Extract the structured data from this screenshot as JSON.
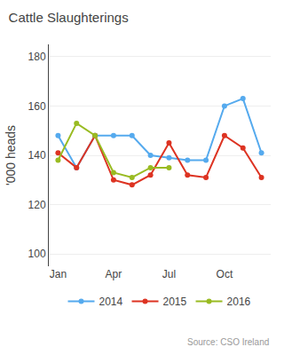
{
  "chart_data": {
    "type": "line",
    "title": "Cattle Slaughterings",
    "ylabel": "'000 heads",
    "annotations": [
      "Source: CSO Ireland"
    ],
    "categories": [
      "Jan",
      null,
      null,
      "Apr",
      null,
      null,
      "Jul",
      null,
      null,
      "Oct",
      null,
      null
    ],
    "series": [
      {
        "name": "2014",
        "color": "#55aaee",
        "values": [
          148,
          135,
          148,
          148,
          148,
          140,
          139,
          138,
          138,
          160,
          163,
          141
        ]
      },
      {
        "name": "2015",
        "color": "#dd3322",
        "values": [
          141,
          135,
          148,
          130,
          128,
          132,
          145,
          132,
          131,
          148,
          143,
          131
        ]
      },
      {
        "name": "2016",
        "color": "#99bb22",
        "values": [
          138,
          153,
          148,
          133,
          131,
          135,
          135,
          null,
          null,
          null,
          null,
          null
        ]
      }
    ],
    "ylim": [
      95,
      185
    ],
    "yticks": [
      100,
      120,
      140,
      160,
      180
    ],
    "grid": true,
    "legend": "bottom",
    "marker": "circle",
    "line_style": "solid"
  }
}
